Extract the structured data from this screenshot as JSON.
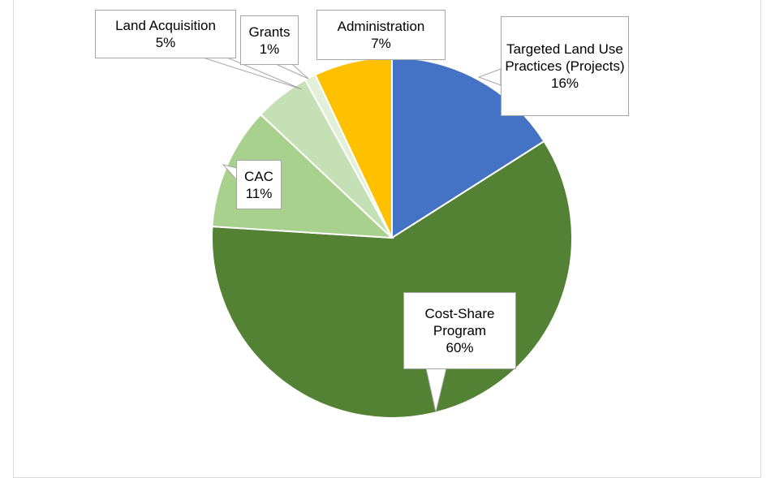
{
  "chart_data": {
    "type": "pie",
    "categories": [
      "Targeted Land Use Practices (Projects)",
      "Cost-Share Program",
      "CAC",
      "Land Acquisition",
      "Grants",
      "Administration"
    ],
    "values": [
      16,
      60,
      11,
      5,
      1,
      7
    ],
    "value_labels": [
      "16%",
      "60%",
      "11%",
      "5%",
      "1%",
      "7%"
    ],
    "colors": [
      "#4472c4",
      "#548235",
      "#a9d18e",
      "#c5e0b4",
      "#e2f0d9",
      "#ffc000"
    ]
  }
}
